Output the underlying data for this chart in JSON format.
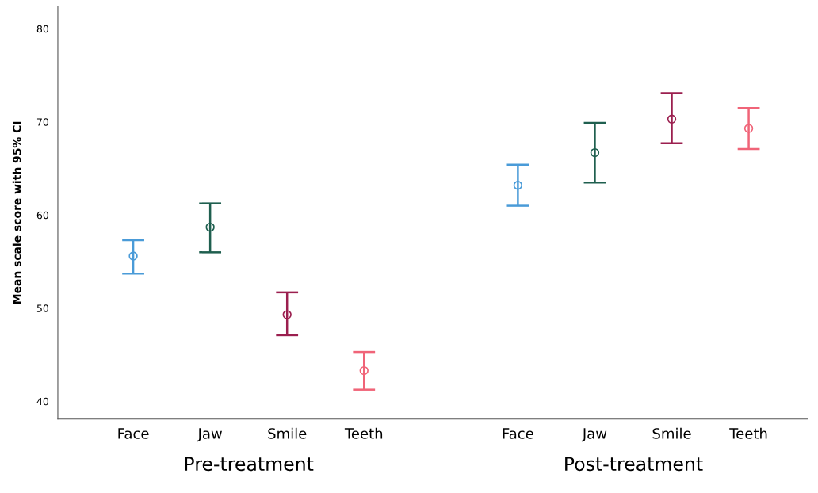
{
  "chart_data": {
    "type": "scatter",
    "ylabel": "Mean scale score with 95% CI",
    "categories": [
      "Face",
      "Jaw",
      "Smile",
      "Teeth",
      null,
      "Face",
      "Jaw",
      "Smile",
      "Teeth"
    ],
    "values": [
      55.6,
      58.7,
      49.3,
      43.3,
      null,
      63.2,
      66.7,
      70.3,
      69.3
    ],
    "errors": [
      [
        53.7,
        57.3
      ],
      [
        56.0,
        61.25
      ],
      [
        47.1,
        51.7
      ],
      [
        41.25,
        45.3
      ],
      null,
      [
        61.0,
        65.4
      ],
      [
        63.5,
        69.9
      ],
      [
        67.7,
        73.1
      ],
      [
        67.1,
        71.5
      ]
    ],
    "colors": [
      "#4a9bd8",
      "#1f5f4f",
      "#9b1f4f",
      "#f06478",
      null,
      "#4a9bd8",
      "#1f5f4f",
      "#9b1f4f",
      "#f06478"
    ],
    "ylim": [
      38.1,
      82.4
    ],
    "yticks": [
      40,
      50,
      60,
      70,
      80
    ],
    "annotations": [
      "Pre-treatment",
      "Post-treatment"
    ],
    "marker": "circle",
    "grid": false,
    "legend": false
  }
}
